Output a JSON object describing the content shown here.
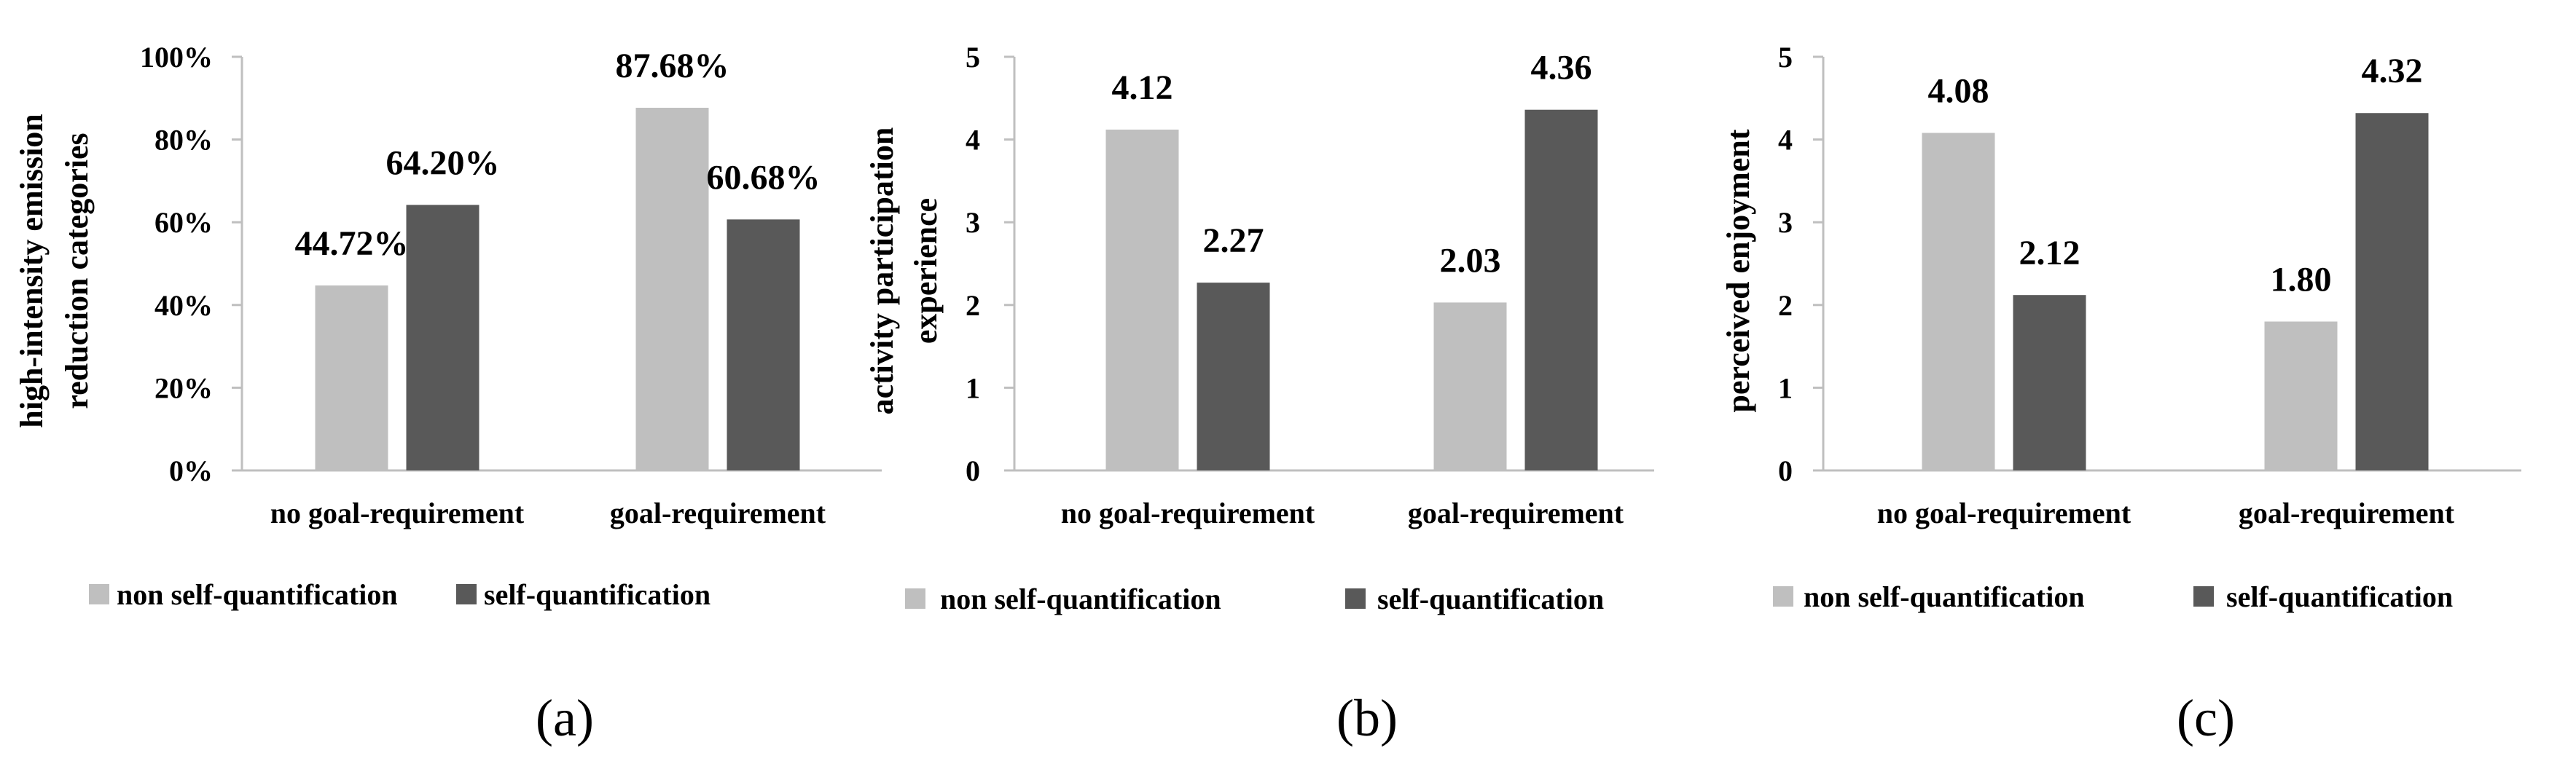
{
  "colors": {
    "series0": "#bfbfbf",
    "series1": "#595959",
    "axis": "#bfbfbf"
  },
  "chart_data": [
    {
      "type": "bar",
      "panel_label": "(a)",
      "ylabel_lines": [
        "high-intensity emission",
        "reduction categories"
      ],
      "categories": [
        "no goal-requirement",
        "goal-requirement"
      ],
      "series": [
        {
          "name": "non self-quantification",
          "values": [
            44.72,
            87.68
          ]
        },
        {
          "name": "self-quantification",
          "values": [
            64.2,
            60.68
          ]
        }
      ],
      "data_labels": [
        [
          "44.72%",
          "87.68%"
        ],
        [
          "64.20%",
          "60.68%"
        ]
      ],
      "ylim": [
        0,
        100
      ],
      "yticks": [
        0,
        20,
        40,
        60,
        80,
        100
      ],
      "ytick_labels": [
        "0%",
        "20%",
        "40%",
        "60%",
        "80%",
        "100%"
      ],
      "legend_position": "bottom"
    },
    {
      "type": "bar",
      "panel_label": "(b)",
      "ylabel_lines": [
        "activity participation",
        "experience"
      ],
      "categories": [
        "no goal-requirement",
        "goal-requirement"
      ],
      "series": [
        {
          "name": "non self-quantification",
          "values": [
            4.12,
            2.03
          ]
        },
        {
          "name": "self-quantification",
          "values": [
            2.27,
            4.36
          ]
        }
      ],
      "data_labels": [
        [
          "4.12",
          "2.03"
        ],
        [
          "2.27",
          "4.36"
        ]
      ],
      "ylim": [
        0,
        5
      ],
      "yticks": [
        0,
        1,
        2,
        3,
        4,
        5
      ],
      "ytick_labels": [
        "0",
        "1",
        "2",
        "3",
        "4",
        "5"
      ],
      "legend_position": "bottom"
    },
    {
      "type": "bar",
      "panel_label": "(c)",
      "ylabel_lines": [
        "perceived enjoyment"
      ],
      "categories": [
        "no goal-requirement",
        "goal-requirement"
      ],
      "series": [
        {
          "name": "non self-quantification",
          "values": [
            4.08,
            1.8
          ]
        },
        {
          "name": "self-quantification",
          "values": [
            2.12,
            4.32
          ]
        }
      ],
      "data_labels": [
        [
          "4.08",
          "1.80"
        ],
        [
          "2.12",
          "4.32"
        ]
      ],
      "ylim": [
        0,
        5
      ],
      "yticks": [
        0,
        1,
        2,
        3,
        4,
        5
      ],
      "ytick_labels": [
        "0",
        "1",
        "2",
        "3",
        "4",
        "5"
      ],
      "legend_position": "bottom"
    }
  ]
}
